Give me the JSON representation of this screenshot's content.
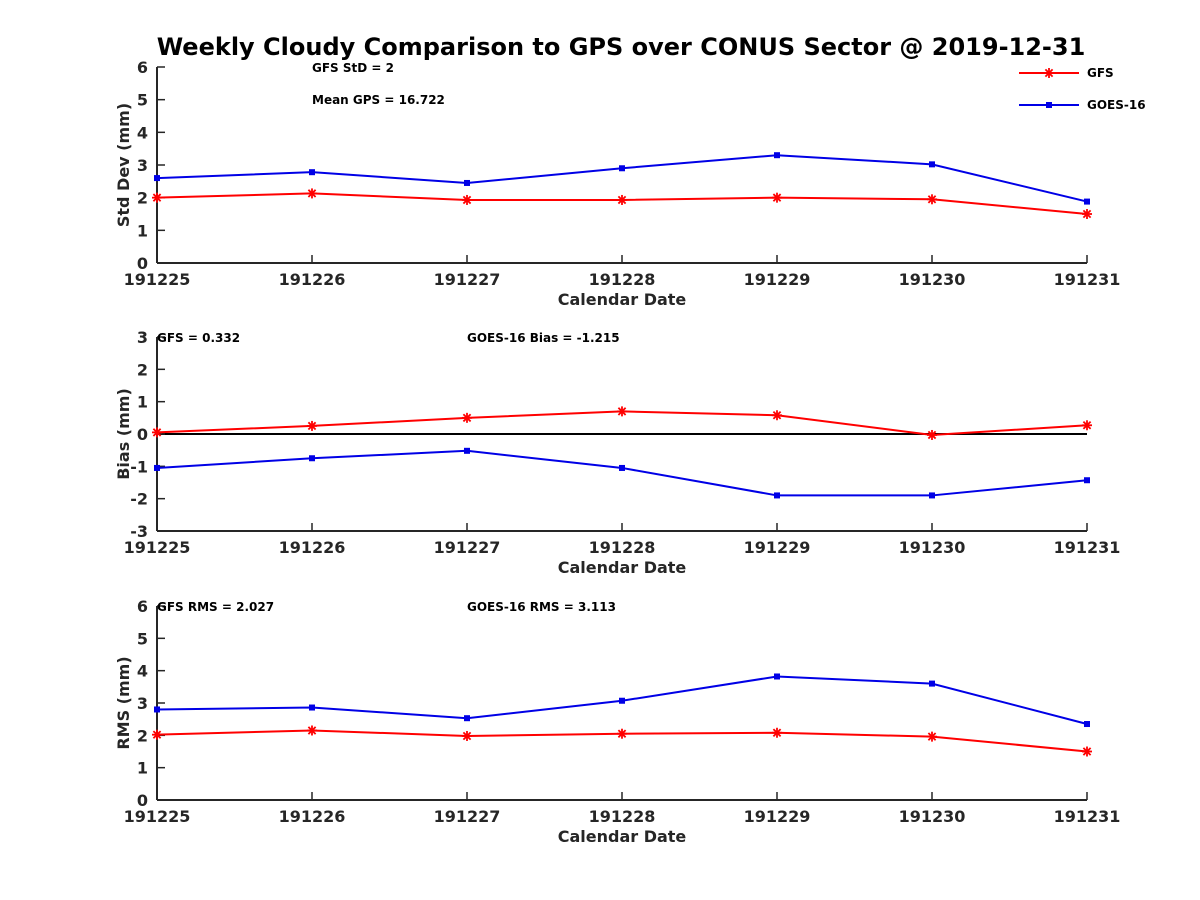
{
  "title": "Weekly Cloudy Comparison to GPS over CONUS Sector @ 2019-12-31",
  "legend": {
    "placement": "top-right",
    "entries": [
      "GFS",
      "GOES-16"
    ]
  },
  "colors": {
    "GFS": "#ff0000",
    "GOES-16": "#0000e6",
    "zero_line": "#000000",
    "axes": "#262626"
  },
  "chart_data": [
    {
      "type": "line",
      "x": [
        "191225",
        "191226",
        "191227",
        "191228",
        "191229",
        "191230",
        "191231"
      ],
      "xlabel": "Calendar Date",
      "ylabel": "Std Dev (mm)",
      "ylim": [
        0,
        6
      ],
      "yticks": [
        "0",
        "1",
        "2",
        "3",
        "4",
        "5",
        "6"
      ],
      "grid": false,
      "annotations": [
        "GFS StD = 2",
        "Mean GPS = 16.722"
      ],
      "series": [
        {
          "name": "GFS",
          "marker": "asterisk",
          "values": [
            2.0,
            2.13,
            1.93,
            1.93,
            2.0,
            1.95,
            1.5
          ]
        },
        {
          "name": "GOES-16",
          "marker": "square",
          "values": [
            2.6,
            2.78,
            2.45,
            2.9,
            3.3,
            3.02,
            1.88
          ]
        }
      ]
    },
    {
      "type": "line",
      "x": [
        "191225",
        "191226",
        "191227",
        "191228",
        "191229",
        "191230",
        "191231"
      ],
      "xlabel": "Calendar Date",
      "ylabel": "Bias (mm)",
      "ylim": [
        -3,
        3
      ],
      "yticks": [
        "-3",
        "-2",
        "-1",
        "0",
        "1",
        "2",
        "3"
      ],
      "grid": false,
      "zero_line": true,
      "annotations": [
        "GFS = 0.332",
        "GOES-16 Bias  = -1.215"
      ],
      "series": [
        {
          "name": "GFS",
          "marker": "asterisk",
          "values": [
            0.05,
            0.25,
            0.5,
            0.7,
            0.58,
            -0.03,
            0.27
          ]
        },
        {
          "name": "GOES-16",
          "marker": "square",
          "values": [
            -1.05,
            -0.75,
            -0.52,
            -1.05,
            -1.9,
            -1.9,
            -1.43
          ]
        }
      ]
    },
    {
      "type": "line",
      "x": [
        "191225",
        "191226",
        "191227",
        "191228",
        "191229",
        "191230",
        "191231"
      ],
      "xlabel": "Calendar Date",
      "ylabel": "RMS (mm)",
      "ylim": [
        0,
        6
      ],
      "yticks": [
        "0",
        "1",
        "2",
        "3",
        "4",
        "5",
        "6"
      ],
      "grid": false,
      "annotations": [
        "GFS RMS = 2.027",
        "GOES-16 RMS = 3.113"
      ],
      "series": [
        {
          "name": "GFS",
          "marker": "asterisk",
          "values": [
            2.02,
            2.15,
            1.98,
            2.05,
            2.08,
            1.96,
            1.5
          ]
        },
        {
          "name": "GOES-16",
          "marker": "square",
          "values": [
            2.8,
            2.86,
            2.53,
            3.07,
            3.82,
            3.6,
            2.35
          ]
        }
      ]
    }
  ]
}
